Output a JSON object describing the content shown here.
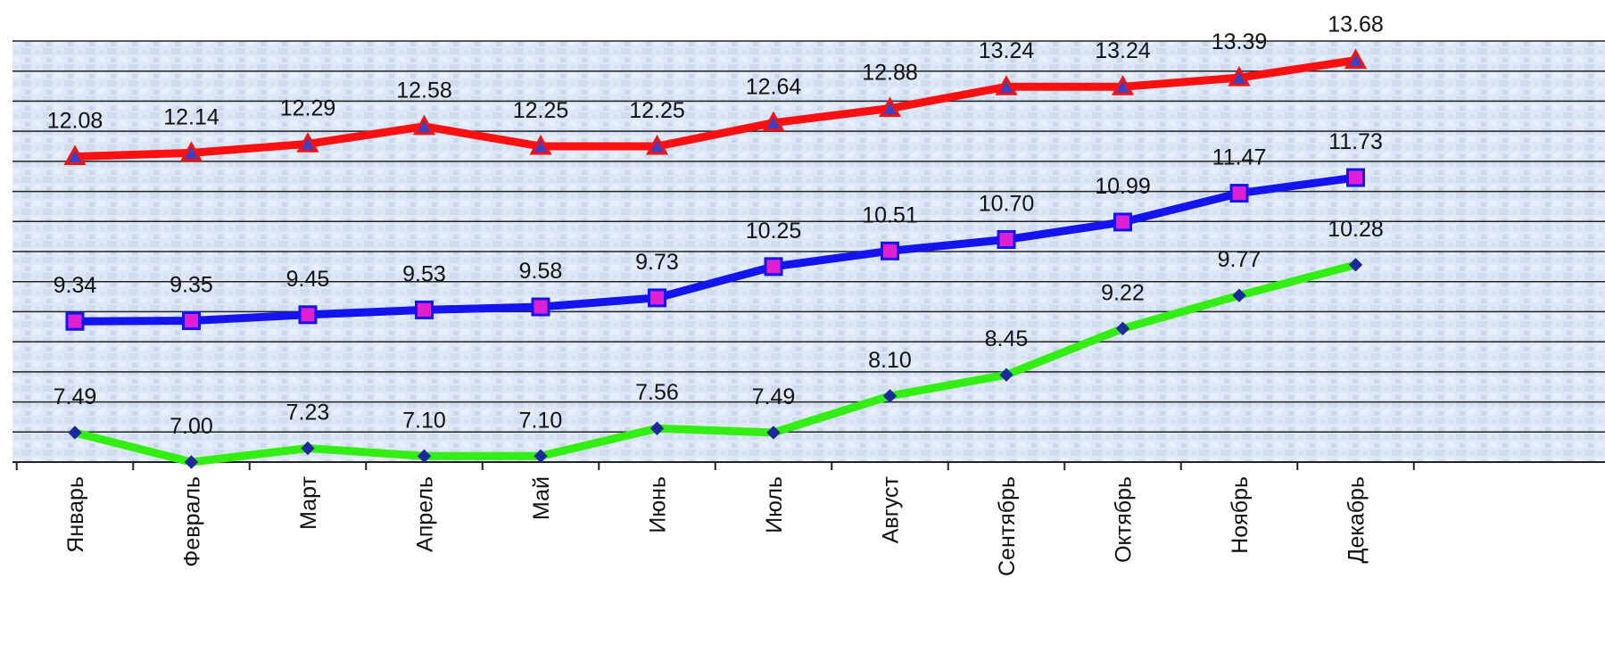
{
  "chart_data": {
    "type": "line",
    "categories": [
      "Январь",
      "Февраль",
      "Март",
      "Апрель",
      "Май",
      "Июнь",
      "Июль",
      "Август",
      "Сентябрь",
      "Октябрь",
      "Ноябрь",
      "Декабрь"
    ],
    "series": [
      {
        "color": "#ff1010",
        "marker": "triangle",
        "marker_fill": "#4040c0",
        "values": [
          12.08,
          12.14,
          12.29,
          12.58,
          12.25,
          12.25,
          12.64,
          12.88,
          13.24,
          13.24,
          13.39,
          13.68
        ]
      },
      {
        "color": "#1414f0",
        "marker": "square",
        "marker_fill": "#e020d0",
        "values": [
          9.34,
          9.35,
          9.45,
          9.53,
          9.58,
          9.73,
          10.25,
          10.51,
          10.7,
          10.99,
          11.47,
          11.73
        ]
      },
      {
        "color": "#33ee11",
        "marker": "diamond",
        "marker_fill": "#1a2a9a",
        "values": [
          7.49,
          7.0,
          7.23,
          7.1,
          7.1,
          7.56,
          7.49,
          8.1,
          8.45,
          9.22,
          9.77,
          10.28
        ]
      }
    ],
    "ylim": [
      7.0,
      14.0
    ],
    "y_gridline_step": 0.5,
    "grid": true,
    "legend": "none",
    "xlabel": "",
    "ylabel": "",
    "title": "",
    "plot_background": "#dfe8f6",
    "gridline_color": "#222222"
  }
}
